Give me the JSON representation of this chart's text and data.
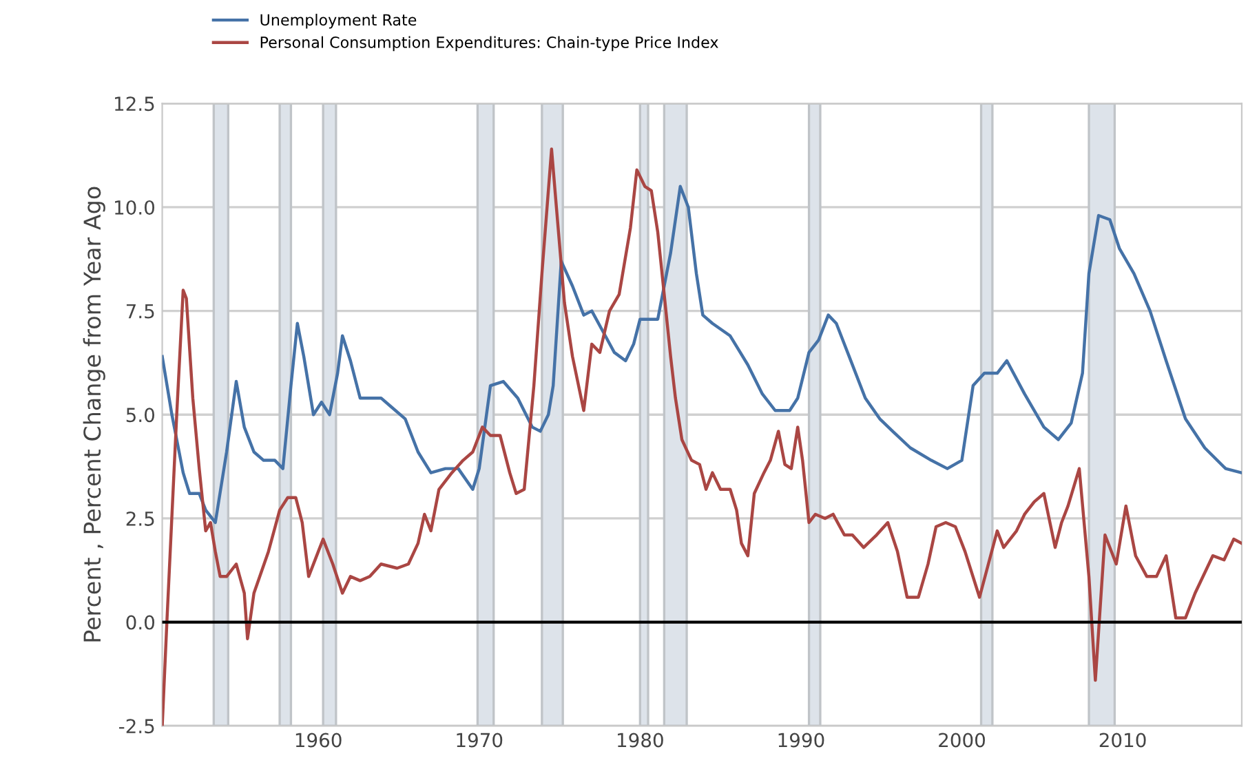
{
  "chart_data": {
    "type": "line",
    "ylabel": "Percent , Percent Change from Year Ago",
    "xlim": [
      1950.3,
      2017.4
    ],
    "xticks": [
      1960,
      1970,
      1980,
      1990,
      2000,
      2010
    ],
    "ylim": [
      -2.5,
      12.5
    ],
    "yticks": [
      {
        "value": -2.5,
        "label": "-2.5"
      },
      {
        "value": 0,
        "label": "0.0"
      },
      {
        "value": 2.5,
        "label": "2.5"
      },
      {
        "value": 5,
        "label": "5.0"
      },
      {
        "value": 7.5,
        "label": "7.5"
      },
      {
        "value": 10,
        "label": "10.0"
      },
      {
        "value": 12.5,
        "label": "12.5"
      }
    ],
    "grid": "y",
    "legend": "top left",
    "line_style": "solid",
    "marker": "none",
    "series": [
      {
        "name": "Unemployment Rate",
        "color": "#4572a7",
        "x": [
          1950.3,
          1950.9,
          1951.6,
          1952.0,
          1952.6,
          1953.0,
          1953.6,
          1954.3,
          1954.9,
          1955.4,
          1956.0,
          1956.6,
          1957.3,
          1957.8,
          1958.3,
          1958.7,
          1959.1,
          1959.7,
          1960.2,
          1960.7,
          1961.2,
          1961.5,
          1962.0,
          1962.6,
          1963.2,
          1963.9,
          1964.5,
          1965.4,
          1966.2,
          1967.0,
          1967.9,
          1968.7,
          1969.6,
          1970.0,
          1970.7,
          1971.5,
          1972.4,
          1973.3,
          1973.8,
          1974.3,
          1974.6,
          1975.1,
          1975.8,
          1976.5,
          1977.0,
          1977.7,
          1978.4,
          1979.1,
          1979.6,
          1980.0,
          1980.3,
          1981.1,
          1981.9,
          1982.5,
          1983.0,
          1983.5,
          1983.9,
          1984.5,
          1985.6,
          1986.7,
          1987.6,
          1988.4,
          1989.3,
          1989.8,
          1990.5,
          1991.1,
          1991.7,
          1992.2,
          1993.0,
          1994.0,
          1994.9,
          1995.7,
          1996.8,
          1998.1,
          1999.1,
          2000.0,
          2000.7,
          2001.4,
          2002.2,
          2002.8,
          2003.9,
          2005.1,
          2006.0,
          2006.8,
          2007.5,
          2007.9,
          2008.5,
          2009.2,
          2009.8,
          2010.7,
          2011.7,
          2012.7,
          2013.9,
          2015.1,
          2016.4,
          2017.4
        ],
        "values": [
          6.4,
          5.0,
          3.6,
          3.1,
          3.1,
          2.7,
          2.4,
          4.1,
          5.8,
          4.7,
          4.1,
          3.9,
          3.9,
          3.7,
          5.7,
          7.2,
          6.4,
          5.0,
          5.3,
          5.0,
          6.0,
          6.9,
          6.3,
          5.4,
          5.4,
          5.4,
          5.2,
          4.9,
          4.1,
          3.6,
          3.7,
          3.7,
          3.2,
          3.7,
          5.7,
          5.8,
          5.4,
          4.7,
          4.6,
          5.0,
          5.7,
          8.7,
          8.1,
          7.4,
          7.5,
          7.0,
          6.5,
          6.3,
          6.7,
          7.3,
          7.3,
          7.3,
          8.9,
          10.5,
          10.0,
          8.4,
          7.4,
          7.2,
          6.9,
          6.2,
          5.5,
          5.1,
          5.1,
          5.4,
          6.5,
          6.8,
          7.4,
          7.2,
          6.4,
          5.4,
          4.9,
          4.6,
          4.2,
          3.9,
          3.7,
          3.9,
          5.7,
          6.0,
          6.0,
          6.3,
          5.5,
          4.7,
          4.4,
          4.8,
          6.0,
          8.4,
          9.8,
          9.7,
          9.0,
          8.4,
          7.5,
          6.3,
          4.9,
          4.2,
          3.7,
          3.6
        ]
      },
      {
        "name": "Personal Consumption Expenditures: Chain-type Price Index",
        "color": "#aa4643",
        "x": [
          1950.3,
          1950.6,
          1951.2,
          1951.6,
          1951.8,
          1952.2,
          1952.6,
          1953.0,
          1953.3,
          1953.6,
          1953.9,
          1954.3,
          1954.9,
          1955.4,
          1955.6,
          1956.0,
          1956.9,
          1957.6,
          1958.1,
          1958.6,
          1959.0,
          1959.4,
          1960.0,
          1960.3,
          1960.9,
          1961.5,
          1962.0,
          1962.6,
          1963.2,
          1963.9,
          1964.9,
          1965.6,
          1966.2,
          1966.6,
          1967.0,
          1967.5,
          1968.3,
          1969.0,
          1969.6,
          1970.2,
          1970.7,
          1971.3,
          1971.9,
          1972.3,
          1972.8,
          1973.4,
          1973.9,
          1974.5,
          1974.8,
          1975.3,
          1975.8,
          1976.5,
          1977.0,
          1977.5,
          1978.1,
          1978.7,
          1979.4,
          1979.8,
          1980.3,
          1980.7,
          1981.1,
          1981.5,
          1981.9,
          1982.2,
          1982.6,
          1983.2,
          1983.7,
          1984.1,
          1984.5,
          1985.0,
          1985.6,
          1986.0,
          1986.3,
          1986.7,
          1987.1,
          1987.7,
          1988.1,
          1988.6,
          1989.0,
          1989.4,
          1989.8,
          1990.1,
          1990.5,
          1990.9,
          1991.5,
          1992.0,
          1992.7,
          1993.2,
          1993.9,
          1994.7,
          1995.4,
          1996.0,
          1996.6,
          1997.3,
          1997.9,
          1998.4,
          1999.0,
          1999.6,
          2000.2,
          2001.1,
          2002.2,
          2002.6,
          2003.4,
          2003.9,
          2004.5,
          2005.1,
          2005.8,
          2006.2,
          2006.6,
          2007.3,
          2007.9,
          2008.3,
          2008.9,
          2009.6,
          2010.2,
          2010.8,
          2011.5,
          2012.1,
          2012.7,
          2013.3,
          2013.9,
          2014.5,
          2015.6,
          2016.3,
          2016.9,
          2017.4
        ],
        "values": [
          -2.5,
          0.1,
          5.0,
          8.0,
          7.8,
          5.4,
          3.7,
          2.2,
          2.4,
          1.7,
          1.1,
          1.1,
          1.4,
          0.7,
          -0.4,
          0.7,
          1.7,
          2.7,
          3.0,
          3.0,
          2.4,
          1.1,
          1.7,
          2.0,
          1.4,
          0.7,
          1.1,
          1.0,
          1.1,
          1.4,
          1.3,
          1.4,
          1.9,
          2.6,
          2.2,
          3.2,
          3.6,
          3.9,
          4.1,
          4.7,
          4.5,
          4.5,
          3.6,
          3.1,
          3.2,
          5.7,
          8.4,
          11.4,
          10.0,
          7.7,
          6.4,
          5.1,
          6.7,
          6.5,
          7.5,
          7.9,
          9.5,
          10.9,
          10.5,
          10.4,
          9.4,
          7.9,
          6.4,
          5.4,
          4.4,
          3.9,
          3.8,
          3.2,
          3.6,
          3.2,
          3.2,
          2.7,
          1.9,
          1.6,
          3.1,
          3.6,
          3.9,
          4.6,
          3.8,
          3.7,
          4.7,
          3.9,
          2.4,
          2.6,
          2.5,
          2.6,
          2.1,
          2.1,
          1.8,
          2.1,
          2.4,
          1.7,
          0.6,
          0.6,
          1.4,
          2.3,
          2.4,
          2.3,
          1.7,
          0.6,
          2.2,
          1.8,
          2.2,
          2.6,
          2.9,
          3.1,
          1.8,
          2.4,
          2.8,
          3.7,
          1.1,
          -1.4,
          2.1,
          1.4,
          2.8,
          1.6,
          1.1,
          1.1,
          1.6,
          0.1,
          0.1,
          0.7,
          1.6,
          1.5,
          2.0,
          1.9
        ]
      }
    ],
    "ref_lines": [
      {
        "axis": "y",
        "value": 0,
        "color": "#000000"
      }
    ],
    "bands": [
      {
        "axis": "x",
        "from": 1953.5,
        "to": 1954.4,
        "color": "#dde3ea"
      },
      {
        "axis": "x",
        "from": 1957.6,
        "to": 1958.3,
        "color": "#dde3ea"
      },
      {
        "axis": "x",
        "from": 1960.3,
        "to": 1961.1,
        "color": "#dde3ea"
      },
      {
        "axis": "x",
        "from": 1969.9,
        "to": 1970.9,
        "color": "#dde3ea"
      },
      {
        "axis": "x",
        "from": 1973.9,
        "to": 1975.2,
        "color": "#dde3ea"
      },
      {
        "axis": "x",
        "from": 1980.0,
        "to": 1980.5,
        "color": "#dde3ea"
      },
      {
        "axis": "x",
        "from": 1981.5,
        "to": 1982.9,
        "color": "#dde3ea"
      },
      {
        "axis": "x",
        "from": 1990.5,
        "to": 1991.2,
        "color": "#dde3ea"
      },
      {
        "axis": "x",
        "from": 2001.2,
        "to": 2001.9,
        "color": "#dde3ea"
      },
      {
        "axis": "x",
        "from": 2007.9,
        "to": 2009.5,
        "color": "#dde3ea"
      }
    ]
  }
}
